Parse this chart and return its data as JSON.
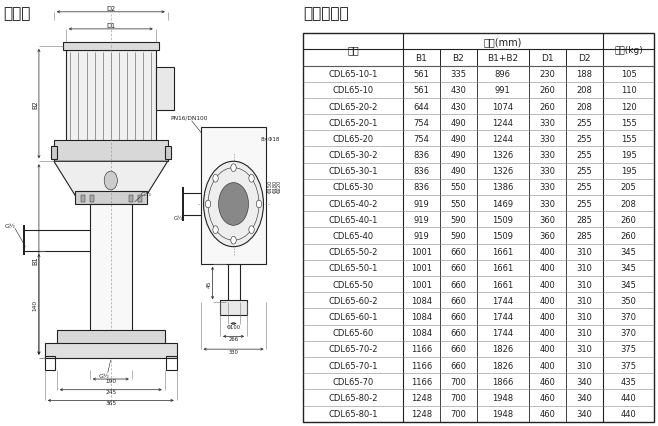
{
  "title_left": "安装图",
  "title_right": "尺寸和重量",
  "table_header_1": "型号",
  "table_header_2": "尺寸(mm)",
  "table_header_3": "重量(kg)",
  "col_headers": [
    "B1",
    "B2",
    "B1+B2",
    "D1",
    "D2"
  ],
  "rows": [
    [
      "CDL65-10-1",
      "561",
      "335",
      "896",
      "230",
      "188",
      "105"
    ],
    [
      "CDL65-10",
      "561",
      "430",
      "991",
      "260",
      "208",
      "110"
    ],
    [
      "CDL65-20-2",
      "644",
      "430",
      "1074",
      "260",
      "208",
      "120"
    ],
    [
      "CDL65-20-1",
      "754",
      "490",
      "1244",
      "330",
      "255",
      "155"
    ],
    [
      "CDL65-20",
      "754",
      "490",
      "1244",
      "330",
      "255",
      "155"
    ],
    [
      "CDL65-30-2",
      "836",
      "490",
      "1326",
      "330",
      "255",
      "195"
    ],
    [
      "CDL65-30-1",
      "836",
      "490",
      "1326",
      "330",
      "255",
      "195"
    ],
    [
      "CDL65-30",
      "836",
      "550",
      "1386",
      "330",
      "255",
      "205"
    ],
    [
      "CDL65-40-2",
      "919",
      "550",
      "1469",
      "330",
      "255",
      "208"
    ],
    [
      "CDL65-40-1",
      "919",
      "590",
      "1509",
      "360",
      "285",
      "260"
    ],
    [
      "CDL65-40",
      "919",
      "590",
      "1509",
      "360",
      "285",
      "260"
    ],
    [
      "CDL65-50-2",
      "1001",
      "660",
      "1661",
      "400",
      "310",
      "345"
    ],
    [
      "CDL65-50-1",
      "1001",
      "660",
      "1661",
      "400",
      "310",
      "345"
    ],
    [
      "CDL65-50",
      "1001",
      "660",
      "1661",
      "400",
      "310",
      "345"
    ],
    [
      "CDL65-60-2",
      "1084",
      "660",
      "1744",
      "400",
      "310",
      "350"
    ],
    [
      "CDL65-60-1",
      "1084",
      "660",
      "1744",
      "400",
      "310",
      "370"
    ],
    [
      "CDL65-60",
      "1084",
      "660",
      "1744",
      "400",
      "310",
      "370"
    ],
    [
      "CDL65-70-2",
      "1166",
      "660",
      "1826",
      "400",
      "310",
      "375"
    ],
    [
      "CDL65-70-1",
      "1166",
      "660",
      "1826",
      "400",
      "310",
      "375"
    ],
    [
      "CDL65-70",
      "1166",
      "700",
      "1866",
      "460",
      "340",
      "435"
    ],
    [
      "CDL65-80-2",
      "1248",
      "700",
      "1948",
      "460",
      "340",
      "440"
    ],
    [
      "CDL65-80-1",
      "1248",
      "700",
      "1948",
      "460",
      "340",
      "440"
    ]
  ],
  "bg_color": "#ffffff",
  "line_color": "#222222",
  "text_color": "#111111",
  "font_size_title": 10,
  "font_size_header": 7,
  "font_size_cell": 6,
  "font_size_small": 5,
  "draw_split": 0.455
}
